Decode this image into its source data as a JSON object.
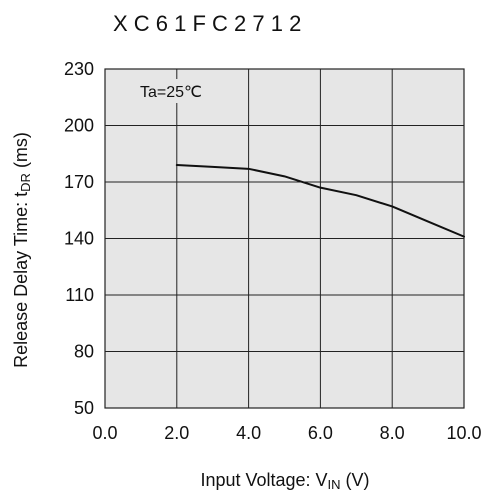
{
  "colors": {
    "background": "#ffffff",
    "plot_background": "#e6e6e6",
    "grid": "#222222",
    "line": "#111111",
    "text": "#111111"
  },
  "chart_data": {
    "type": "line",
    "title": "X C 6 1 F C 2 7 1 2",
    "annotation": "Ta=25℃",
    "xlabel": {
      "prefix": "Input Voltage: V",
      "subscript": "IN",
      "suffix": " (V)"
    },
    "ylabel": {
      "prefix": "Release Delay Time: t",
      "subscript": "DR",
      "suffix": " (ms)"
    },
    "xlim": [
      0,
      10
    ],
    "ylim": [
      50,
      230
    ],
    "xticks": [
      0,
      2,
      4,
      6,
      8,
      10
    ],
    "yticks": [
      50,
      80,
      110,
      140,
      170,
      200,
      230
    ],
    "xtick_labels": [
      "0.0",
      "2.0",
      "4.0",
      "6.0",
      "8.0",
      "10.0"
    ],
    "ytick_labels": [
      "50",
      "80",
      "110",
      "140",
      "170",
      "200",
      "230"
    ],
    "grid": true,
    "series": [
      {
        "x": [
          2,
          3,
          4,
          5,
          6,
          7,
          8,
          9,
          10
        ],
        "y": [
          179,
          178,
          177,
          173,
          167,
          163,
          157,
          149,
          141
        ]
      }
    ]
  }
}
